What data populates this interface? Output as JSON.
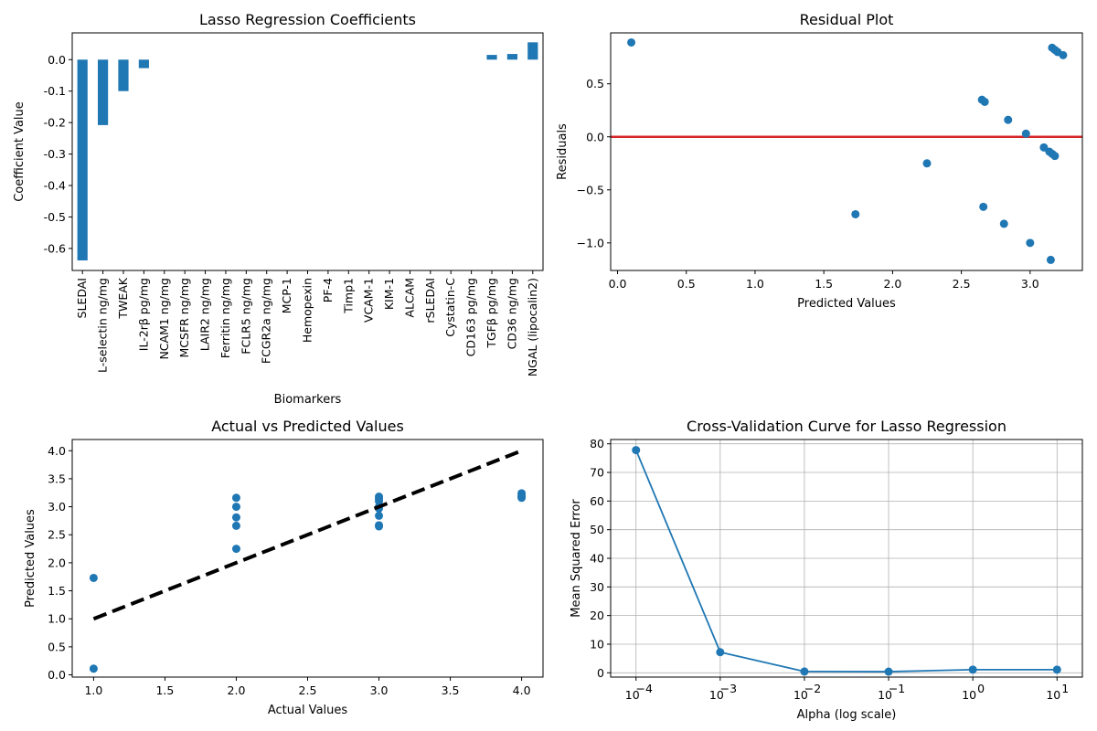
{
  "colors": {
    "series": "#1f77b4",
    "reference": "#d62728",
    "ideal": "#000000",
    "grid": "#b0b0b0"
  },
  "chart_data": [
    {
      "type": "bar",
      "title": "Lasso Regression Coefficients",
      "xlabel": "Biomarkers",
      "ylabel": "Coefficient Value",
      "ylim": [
        -0.67,
        0.085
      ],
      "yticks": [
        "0.0",
        "-0.1",
        "-0.2",
        "-0.3",
        "-0.4",
        "-0.5",
        "-0.6"
      ],
      "ytick_values": [
        0.0,
        -0.1,
        -0.2,
        -0.3,
        -0.4,
        -0.5,
        -0.6
      ],
      "categories": [
        "SLEDAI",
        "L-selectin ng/mg",
        "TWEAK",
        "IL-2rβ pg/mg",
        "NCAM1 ng/mg",
        "MCSFR ng/mg",
        "LAIR2  ng/mg",
        "Ferritin ng/mg",
        "FCLR5 ng/mg",
        "FCGR2a ng/mg",
        "MCP-1",
        "Hemopexin",
        "PF-4",
        "Timp1",
        "VCAM-1",
        "KIM-1",
        "ALCAM",
        "rSLEDAI",
        "Cystatin-C",
        "CD163 pg/mg",
        "TGFβ pg/mg",
        "CD36 ng/mg",
        "NGAL (lipocalin2)"
      ],
      "values": [
        -0.638,
        -0.208,
        -0.1,
        -0.027,
        0,
        0,
        0,
        0,
        0,
        0,
        0,
        0,
        0,
        0,
        0,
        0,
        0,
        0,
        0,
        0,
        0.015,
        0.018,
        0.055
      ],
      "grid": false
    },
    {
      "type": "scatter",
      "title": "Residual Plot",
      "xlabel": "Predicted Values",
      "ylabel": "Residuals",
      "xlim": [
        -0.05,
        3.38
      ],
      "ylim": [
        -1.26,
        0.98
      ],
      "xticks": [
        "0.0",
        "0.5",
        "1.0",
        "1.5",
        "2.0",
        "2.5",
        "3.0"
      ],
      "xtick_values": [
        0.0,
        0.5,
        1.0,
        1.5,
        2.0,
        2.5,
        3.0
      ],
      "yticks": [
        "0.5",
        "0.0",
        "−0.5",
        "−1.0"
      ],
      "ytick_values": [
        0.5,
        0.0,
        -0.5,
        -1.0
      ],
      "reference_line_y": 0,
      "points": [
        [
          0.1,
          0.89
        ],
        [
          1.73,
          -0.73
        ],
        [
          2.25,
          -0.25
        ],
        [
          2.65,
          0.35
        ],
        [
          2.67,
          0.33
        ],
        [
          2.66,
          -0.66
        ],
        [
          2.81,
          -0.82
        ],
        [
          2.84,
          0.16
        ],
        [
          2.97,
          0.03
        ],
        [
          3.0,
          -1.0
        ],
        [
          3.1,
          -0.1
        ],
        [
          3.14,
          -0.14
        ],
        [
          3.16,
          -0.16
        ],
        [
          3.18,
          -0.18
        ],
        [
          3.16,
          0.84
        ],
        [
          3.18,
          0.82
        ],
        [
          3.2,
          0.8
        ],
        [
          3.24,
          0.77
        ],
        [
          3.15,
          -1.16
        ]
      ],
      "grid": false
    },
    {
      "type": "scatter",
      "title": "Actual vs Predicted Values",
      "xlabel": "Actual Values",
      "ylabel": "Predicted Values",
      "xlim": [
        0.85,
        4.15
      ],
      "ylim": [
        -0.04,
        4.2
      ],
      "xticks": [
        "1.0",
        "1.5",
        "2.0",
        "2.5",
        "3.0",
        "3.5",
        "4.0"
      ],
      "xtick_values": [
        1.0,
        1.5,
        2.0,
        2.5,
        3.0,
        3.5,
        4.0
      ],
      "yticks": [
        "0.0",
        "0.5",
        "1.0",
        "1.5",
        "2.0",
        "2.5",
        "3.0",
        "3.5",
        "4.0"
      ],
      "ytick_values": [
        0.0,
        0.5,
        1.0,
        1.5,
        2.0,
        2.5,
        3.0,
        3.5,
        4.0
      ],
      "ideal_line": [
        [
          1,
          1
        ],
        [
          4,
          4
        ]
      ],
      "points": [
        [
          1,
          1.73
        ],
        [
          1,
          0.11
        ],
        [
          2,
          3.16
        ],
        [
          2,
          3.0
        ],
        [
          2,
          2.81
        ],
        [
          2,
          2.66
        ],
        [
          2,
          2.25
        ],
        [
          3,
          3.18
        ],
        [
          3,
          3.14
        ],
        [
          3,
          3.1
        ],
        [
          3,
          3.0
        ],
        [
          3,
          2.97
        ],
        [
          3,
          2.84
        ],
        [
          3,
          2.67
        ],
        [
          3,
          2.65
        ],
        [
          4,
          3.24
        ],
        [
          4,
          3.2
        ],
        [
          4,
          3.18
        ],
        [
          4,
          3.16
        ]
      ],
      "grid": false
    },
    {
      "type": "line",
      "title": "Cross-Validation Curve for Lasso Regression",
      "xlabel": "Alpha (log scale)",
      "ylabel": "Mean Squared Error",
      "xscale": "log",
      "xlim": [
        5e-05,
        20
      ],
      "ylim": [
        -1.5,
        81.5
      ],
      "xticks": [
        {
          "base": "10",
          "exp": "−4"
        },
        {
          "base": "10",
          "exp": "−3"
        },
        {
          "base": "10",
          "exp": "−2"
        },
        {
          "base": "10",
          "exp": "−1"
        },
        {
          "base": "10",
          "exp": "0"
        },
        {
          "base": "10",
          "exp": "1"
        }
      ],
      "xtick_values": [
        0.0001,
        0.001,
        0.01,
        0.1,
        1,
        10
      ],
      "yticks": [
        "0",
        "10",
        "20",
        "30",
        "40",
        "50",
        "60",
        "70",
        "80"
      ],
      "ytick_values": [
        0,
        10,
        20,
        30,
        40,
        50,
        60,
        70,
        80
      ],
      "x": [
        0.0001,
        0.001,
        0.01,
        0.1,
        1,
        10
      ],
      "y": [
        77.8,
        7.2,
        0.45,
        0.4,
        1.1,
        1.1
      ],
      "grid": true
    }
  ]
}
